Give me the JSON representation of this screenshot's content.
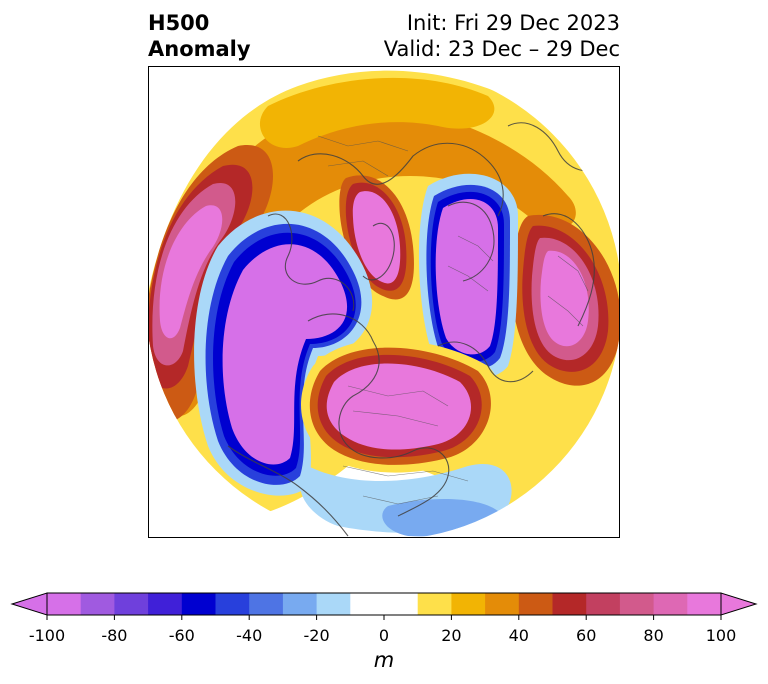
{
  "title": {
    "left_line1": "H500",
    "left_line2": "Anomaly",
    "init": "Init: Fri 29 Dec 2023",
    "valid": "Valid: 23 Dec – 29 Dec"
  },
  "colorbar": {
    "unit": "m",
    "ticks": [
      "-100",
      "-80",
      "-60",
      "-40",
      "-20",
      "0",
      "20",
      "40",
      "60",
      "80",
      "100"
    ],
    "colors": [
      "#d670e8",
      "#a05ae0",
      "#6f40dc",
      "#4020d8",
      "#0000d0",
      "#2840dc",
      "#4e74e4",
      "#78aaf0",
      "#aad8f8",
      "#ffffff",
      "#ffffff",
      "#fee04a",
      "#f2b404",
      "#e48c08",
      "#cc5a14",
      "#b42828",
      "#c24060",
      "#d25a8c",
      "#de68b4",
      "#e878dc"
    ],
    "under_color": "#d670e8",
    "over_color": "#e878dc"
  },
  "map": {
    "projection": "north-polar-stereographic",
    "field": "500 hPa height anomaly"
  }
}
